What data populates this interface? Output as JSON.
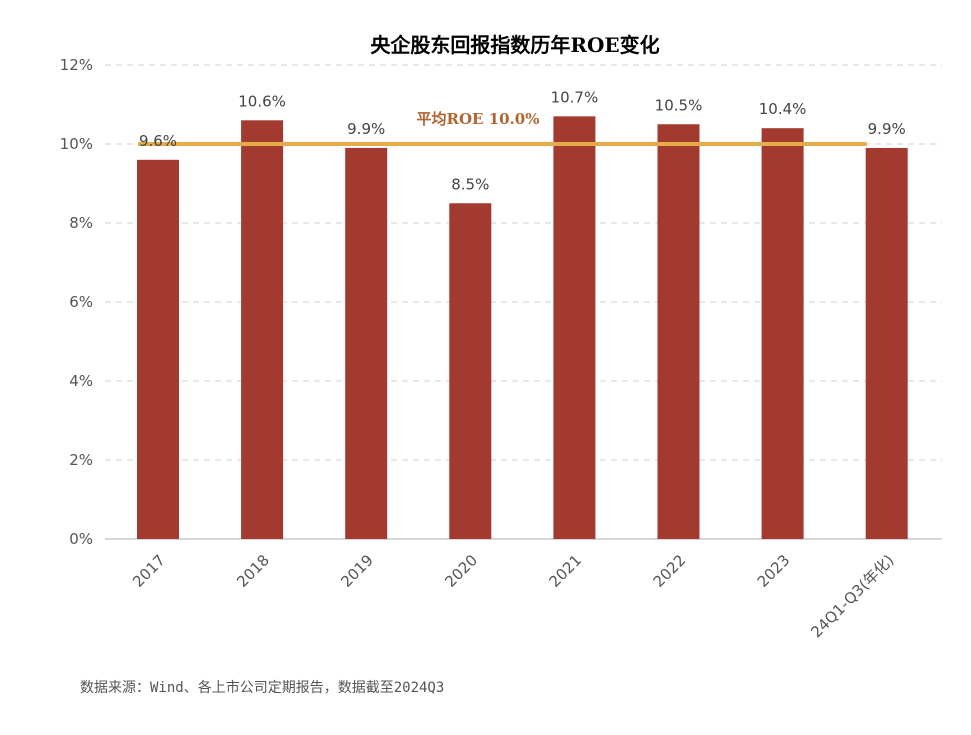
{
  "chart_data": {
    "type": "bar",
    "title": "央企股东回报指数历年ROE变化",
    "categories": [
      "2017",
      "2018",
      "2019",
      "2020",
      "2021",
      "2022",
      "2023",
      "24Q1-Q3(年化)"
    ],
    "values": [
      9.6,
      10.6,
      9.9,
      8.5,
      10.7,
      10.5,
      10.4,
      9.9
    ],
    "data_labels": [
      "9.6%",
      "10.6%",
      "9.9%",
      "8.5%",
      "10.7%",
      "10.5%",
      "10.4%",
      "9.9%"
    ],
    "ylim": [
      0,
      12
    ],
    "yticks": [
      0,
      2,
      4,
      6,
      8,
      10,
      12
    ],
    "ytick_labels": [
      "0%",
      "2%",
      "4%",
      "6%",
      "8%",
      "10%",
      "12%"
    ],
    "grid": true,
    "average_line": {
      "value": 10.0,
      "label": "平均ROE 10.0%"
    },
    "colors": {
      "bar": "#a33a30",
      "average_line": "#e5ac4a",
      "average_label": "#b06530",
      "grid": "#d9d9d9"
    }
  },
  "footnote": "数据来源：Wind、各上市公司定期报告，数据截至2024Q3"
}
